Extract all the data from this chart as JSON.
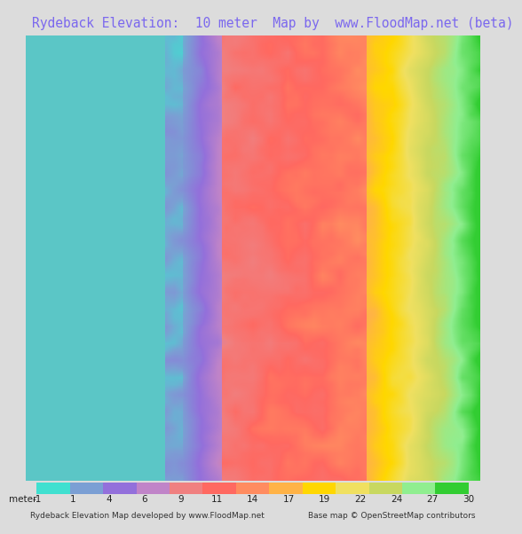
{
  "title": "Rydeback Elevation:  10 meter  Map by  www.FloodMap.net (beta)",
  "title_color": "#7b68ee",
  "title_fontsize": 10.5,
  "bg_color": "#dcdcdc",
  "map_bg": "#5bc8c8",
  "colorbar_ticks": [
    -1,
    1,
    4,
    6,
    9,
    11,
    14,
    17,
    19,
    22,
    24,
    27,
    30
  ],
  "colorbar_colors": [
    "#40e0d0",
    "#7b9fd4",
    "#9370db",
    "#c084c8",
    "#f08080",
    "#ff6961",
    "#ff8c60",
    "#ffb347",
    "#ffd700",
    "#f0e060",
    "#c8d860",
    "#90ee90",
    "#32cd32"
  ],
  "footer_left": "Rydeback Elevation Map developed by www.FloodMap.net",
  "footer_right": "Base map © OpenStreetMap contributors",
  "footer_fontsize": 6.5,
  "meter_label": "meter",
  "colorbar_label_fontsize": 7.5,
  "water_color": [
    91,
    198,
    198
  ],
  "title_bg": "#e8e6e0",
  "cbar_bg": "#e8e6e0",
  "footer_bg": "#e8e6e0"
}
